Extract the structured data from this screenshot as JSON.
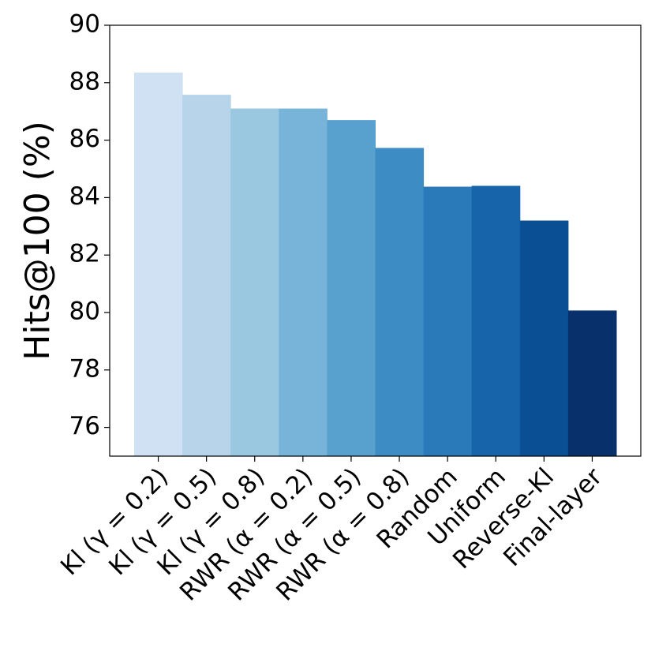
{
  "chart_data": {
    "type": "bar",
    "y_label": "Hits@100 (%)",
    "categories": [
      "Kl (γ = 0.2)",
      "Kl (γ = 0.5)",
      "Kl (γ = 0.8)",
      "RWR (α = 0.2)",
      "RWR (α = 0.5)",
      "RWR (α = 0.8)",
      "Random",
      "Uniform",
      "Reverse-Kl",
      "Final-layer"
    ],
    "values": [
      88.35,
      87.58,
      87.1,
      87.1,
      86.7,
      85.73,
      84.38,
      84.41,
      83.2,
      80.07
    ],
    "colors": [
      "#cfe1f2",
      "#b7d4ea",
      "#9ac8e0",
      "#78b4d9",
      "#58a0ce",
      "#3d8dc4",
      "#2a79b8",
      "#1764ab",
      "#0a4f93",
      "#08306b"
    ],
    "ylim": [
      75,
      90
    ],
    "yticks": [
      76,
      78,
      80,
      82,
      84,
      86,
      88,
      90
    ]
  }
}
